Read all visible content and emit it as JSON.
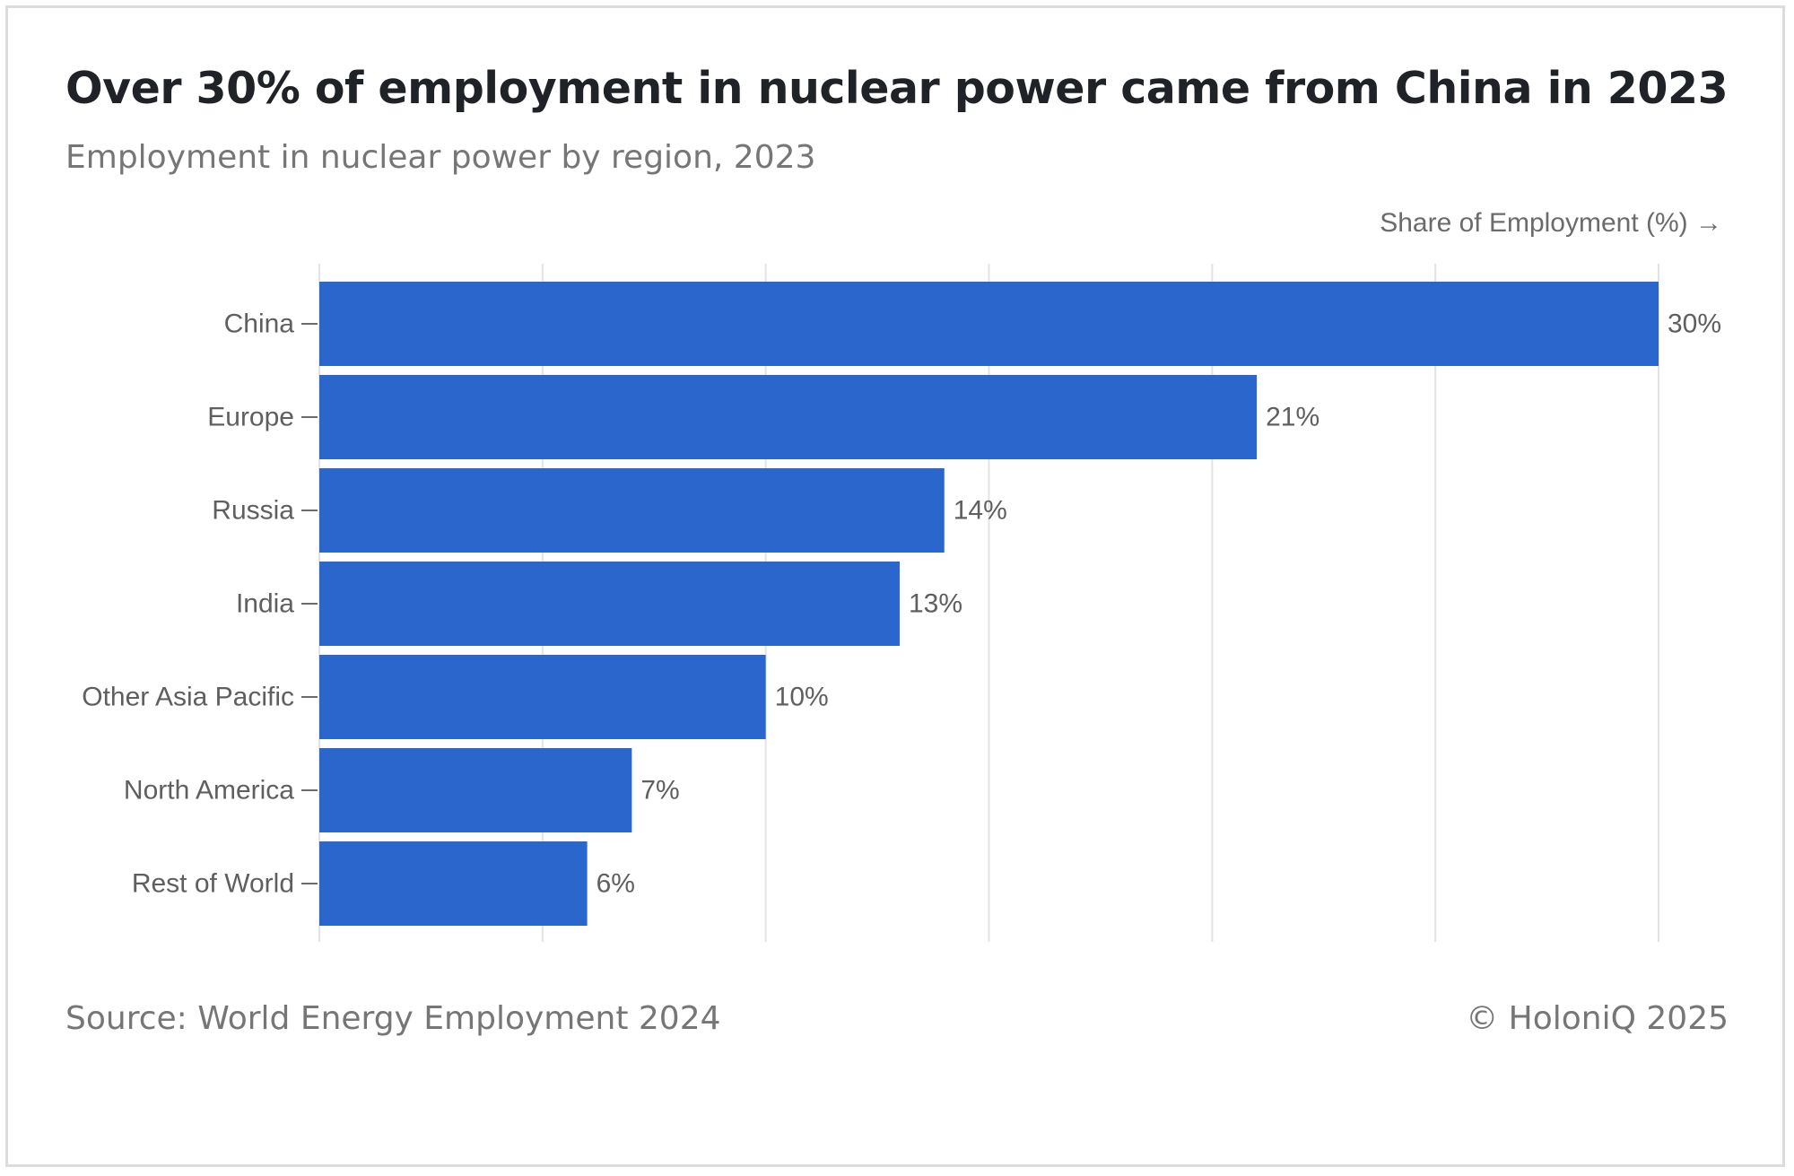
{
  "header": {
    "title": "Over 30% of employment in nuclear power came from China in 2023",
    "subtitle": "Employment in nuclear power by region, 2023"
  },
  "footer": {
    "source": "Source: World Energy Employment 2024",
    "credit": "© HoloniQ 2025"
  },
  "colors": {
    "bar": "#2a66cc",
    "grid": "#e3e3e3",
    "label": "#5f5f5f"
  },
  "chart_data": {
    "type": "bar",
    "orientation": "horizontal",
    "title": "Over 30% of employment in nuclear power came from China in 2023",
    "subtitle": "Employment in nuclear power by region, 2023",
    "xlabel": "Share of Employment (%) →",
    "ylabel": "",
    "categories": [
      "China",
      "Europe",
      "Russia",
      "India",
      "Other Asia Pacific",
      "North America",
      "Rest of World"
    ],
    "values": [
      30,
      21,
      14,
      13,
      10,
      7,
      6
    ],
    "value_labels": [
      "30%",
      "21%",
      "14%",
      "13%",
      "10%",
      "7%",
      "6%"
    ],
    "xlim": [
      0,
      30
    ],
    "grid": true,
    "legend": "none"
  }
}
